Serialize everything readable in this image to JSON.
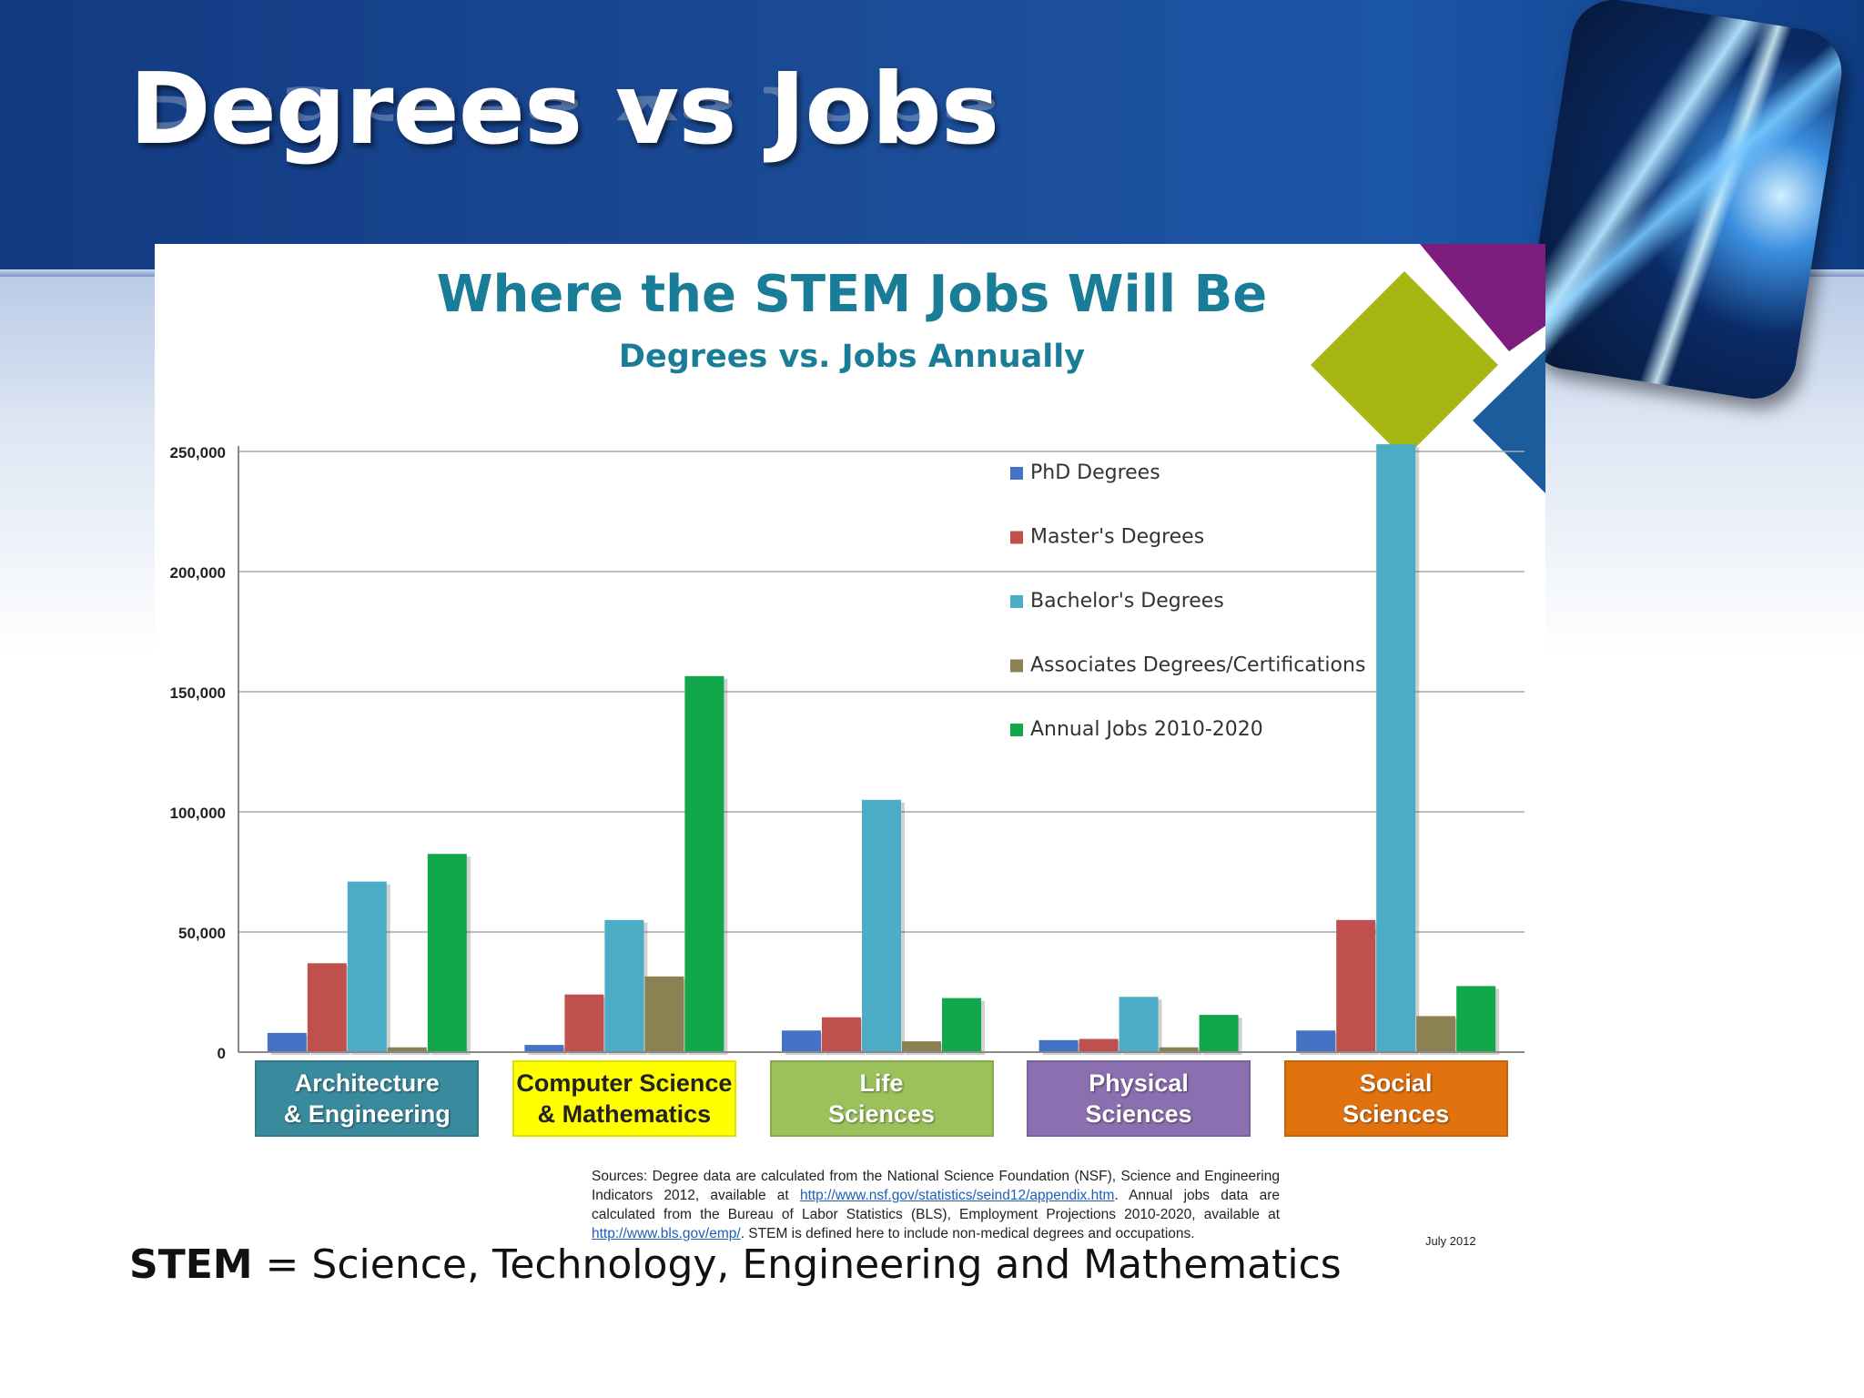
{
  "slide": {
    "title": "Degrees vs Jobs",
    "footer_term": "STEM",
    "footer_definition": "= Science, Technology, Engineering and Mathematics"
  },
  "chart_data": {
    "type": "bar",
    "title": "Where the STEM Jobs Will Be",
    "subtitle": "Degrees vs. Jobs Annually",
    "categories": [
      "Architecture\n& Engineering",
      "Computer Science\n& Mathematics",
      "Life\nSciences",
      "Physical\nSciences",
      "Social\nSciences"
    ],
    "category_colors": [
      "#3a8a9e",
      "#ffff00",
      "#9bc25a",
      "#8c6fb0",
      "#e2720e"
    ],
    "category_text_colors": [
      "#ffffff",
      "#222222",
      "#ffffff",
      "#ffffff",
      "#ffffff"
    ],
    "series": [
      {
        "name": "PhD Degrees",
        "color": "#4472c4",
        "values": [
          8000,
          3000,
          9000,
          5000,
          9000
        ]
      },
      {
        "name": "Master's Degrees",
        "color": "#c0504d",
        "values": [
          37000,
          24000,
          14500,
          5500,
          55000
        ]
      },
      {
        "name": "Bachelor's Degrees",
        "color": "#4bacc6",
        "values": [
          71000,
          55000,
          105000,
          23000,
          253000
        ]
      },
      {
        "name": "Associates Degrees/Certifications",
        "color": "#8c8153",
        "values": [
          2000,
          31500,
          4500,
          2000,
          15000
        ]
      },
      {
        "name": "Annual Jobs 2010-2020",
        "color": "#10a84b",
        "values": [
          82500,
          156500,
          22500,
          15500,
          27500
        ]
      }
    ],
    "y_ticks": [
      "0",
      "50,000",
      "100,000",
      "150,000",
      "200,000",
      "250,000"
    ],
    "ylim": [
      0,
      250000
    ],
    "grid": true,
    "legend_position": "top-right",
    "sources_prefix": "Sources: Degree data are calculated from the National Science Foundation (NSF), Science and Engineering Indicators 2012, available at",
    "sources_link1": "http://www.nsf.gov/statistics/seind12/appendix.htm",
    "sources_middle": ". Annual jobs data are calculated from the Bureau of Labor Statistics (BLS), Employment Projections 2010-2020, available at",
    "sources_link2": "http://www.bls.gov/emp/",
    "sources_suffix": ". STEM is defined here to include non-medical degrees and occupations.",
    "date": "July 2012",
    "title_color": "#1a7d97",
    "accent_shapes": [
      "#a6b713",
      "#7d1e7e",
      "#1b5d9c"
    ]
  }
}
